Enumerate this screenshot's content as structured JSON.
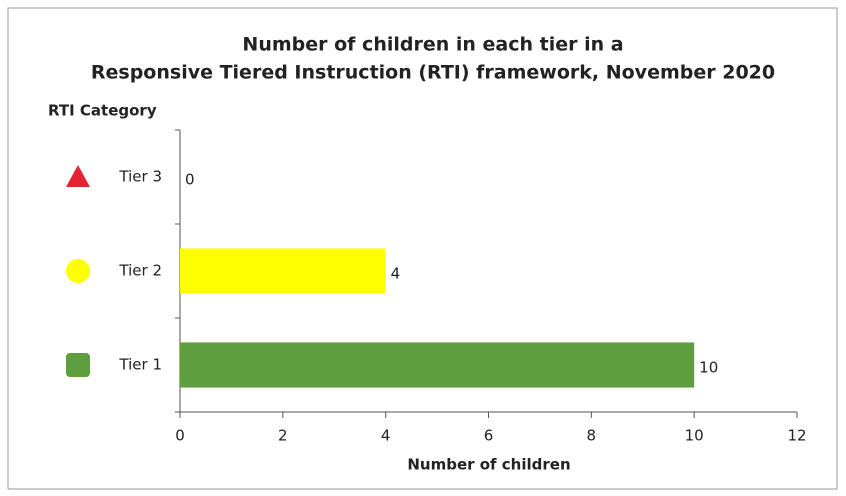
{
  "chart_data": {
    "type": "bar",
    "orientation": "horizontal",
    "title": [
      "Number of children in each tier in a",
      "Responsive Tiered Instruction (RTI) framework, November 2020"
    ],
    "y_label": "RTI Category",
    "x_label": "Number of children",
    "categories": [
      "Tier 3",
      "Tier 2",
      "Tier 1"
    ],
    "values": [
      0,
      4,
      10
    ],
    "colors": [
      "#e3232f",
      "#ffff00",
      "#5e9e3e"
    ],
    "markers": [
      "triangle",
      "circle",
      "square"
    ],
    "xlim": [
      0,
      12
    ],
    "xticks": [
      0,
      2,
      4,
      6,
      8,
      10,
      12
    ],
    "grid": false
  }
}
